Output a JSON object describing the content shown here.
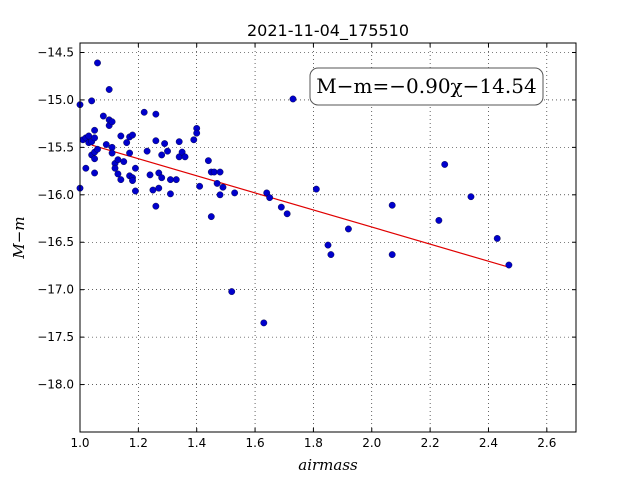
{
  "chart_data": {
    "type": "scatter",
    "title": "2021-11-04_175510",
    "xlabel": "airmass",
    "ylabel": "M−m",
    "xlim": [
      1.0,
      2.7
    ],
    "ylim": [
      -18.5,
      -14.4
    ],
    "y_inverted": true,
    "grid": true,
    "xticks": [
      1.0,
      1.2,
      1.4,
      1.6,
      1.8,
      2.0,
      2.2,
      2.4,
      2.6
    ],
    "xtick_labels": [
      "1.0",
      "1.2",
      "1.4",
      "1.6",
      "1.8",
      "2.0",
      "2.2",
      "2.4",
      "2.6"
    ],
    "yticks": [
      -14.5,
      -15.0,
      -15.5,
      -16.0,
      -16.5,
      -17.0,
      -17.5,
      -18.0
    ],
    "ytick_labels": [
      "−14.5",
      "−15.0",
      "−15.5",
      "−16.0",
      "−16.5",
      "−17.0",
      "−17.5",
      "−18.0"
    ],
    "annotation": "M−m=−0.90χ−14.54",
    "fit": {
      "slope": -0.9,
      "intercept": -14.54,
      "x_range": [
        1.04,
        2.47
      ],
      "color": "#e00000"
    },
    "point_color": "#0000cc",
    "points": [
      [
        1.0,
        -15.05
      ],
      [
        1.0,
        -15.93
      ],
      [
        1.01,
        -15.42
      ],
      [
        1.02,
        -15.4
      ],
      [
        1.02,
        -15.72
      ],
      [
        1.03,
        -15.38
      ],
      [
        1.03,
        -15.45
      ],
      [
        1.04,
        -15.01
      ],
      [
        1.04,
        -15.44
      ],
      [
        1.04,
        -15.58
      ],
      [
        1.05,
        -15.32
      ],
      [
        1.05,
        -15.4
      ],
      [
        1.05,
        -15.55
      ],
      [
        1.05,
        -15.62
      ],
      [
        1.05,
        -15.77
      ],
      [
        1.06,
        -15.52
      ],
      [
        1.06,
        -14.61
      ],
      [
        1.08,
        -15.17
      ],
      [
        1.09,
        -15.47
      ],
      [
        1.1,
        -15.27
      ],
      [
        1.1,
        -15.21
      ],
      [
        1.1,
        -14.89
      ],
      [
        1.11,
        -15.23
      ],
      [
        1.11,
        -15.5
      ],
      [
        1.11,
        -15.56
      ],
      [
        1.12,
        -15.67
      ],
      [
        1.12,
        -15.72
      ],
      [
        1.13,
        -15.63
      ],
      [
        1.13,
        -15.78
      ],
      [
        1.14,
        -15.38
      ],
      [
        1.14,
        -15.84
      ],
      [
        1.15,
        -15.65
      ],
      [
        1.16,
        -15.45
      ],
      [
        1.17,
        -15.39
      ],
      [
        1.17,
        -15.56
      ],
      [
        1.17,
        -15.8
      ],
      [
        1.18,
        -15.37
      ],
      [
        1.18,
        -15.82
      ],
      [
        1.18,
        -15.85
      ],
      [
        1.19,
        -15.72
      ],
      [
        1.19,
        -15.96
      ],
      [
        1.22,
        -15.13
      ],
      [
        1.23,
        -15.54
      ],
      [
        1.24,
        -15.79
      ],
      [
        1.25,
        -15.95
      ],
      [
        1.26,
        -15.15
      ],
      [
        1.26,
        -15.43
      ],
      [
        1.26,
        -16.12
      ],
      [
        1.27,
        -15.77
      ],
      [
        1.27,
        -15.93
      ],
      [
        1.28,
        -15.58
      ],
      [
        1.28,
        -15.82
      ],
      [
        1.29,
        -15.46
      ],
      [
        1.3,
        -15.54
      ],
      [
        1.31,
        -15.84
      ],
      [
        1.31,
        -15.99
      ],
      [
        1.33,
        -15.84
      ],
      [
        1.34,
        -15.44
      ],
      [
        1.34,
        -15.6
      ],
      [
        1.35,
        -15.55
      ],
      [
        1.36,
        -15.6
      ],
      [
        1.39,
        -15.42
      ],
      [
        1.4,
        -15.3
      ],
      [
        1.4,
        -15.35
      ],
      [
        1.41,
        -15.91
      ],
      [
        1.44,
        -15.64
      ],
      [
        1.45,
        -15.76
      ],
      [
        1.45,
        -16.23
      ],
      [
        1.46,
        -15.76
      ],
      [
        1.47,
        -15.88
      ],
      [
        1.48,
        -16.0
      ],
      [
        1.48,
        -15.76
      ],
      [
        1.49,
        -15.92
      ],
      [
        1.52,
        -17.02
      ],
      [
        1.53,
        -15.98
      ],
      [
        1.63,
        -17.35
      ],
      [
        1.64,
        -15.98
      ],
      [
        1.65,
        -16.03
      ],
      [
        1.69,
        -16.13
      ],
      [
        1.71,
        -16.2
      ],
      [
        1.73,
        -14.99
      ],
      [
        1.81,
        -15.94
      ],
      [
        1.85,
        -16.53
      ],
      [
        1.86,
        -16.63
      ],
      [
        1.92,
        -16.36
      ],
      [
        2.07,
        -16.11
      ],
      [
        2.07,
        -16.63
      ],
      [
        2.23,
        -16.27
      ],
      [
        2.25,
        -15.68
      ],
      [
        2.34,
        -16.02
      ],
      [
        2.43,
        -16.46
      ],
      [
        2.47,
        -16.74
      ]
    ]
  }
}
